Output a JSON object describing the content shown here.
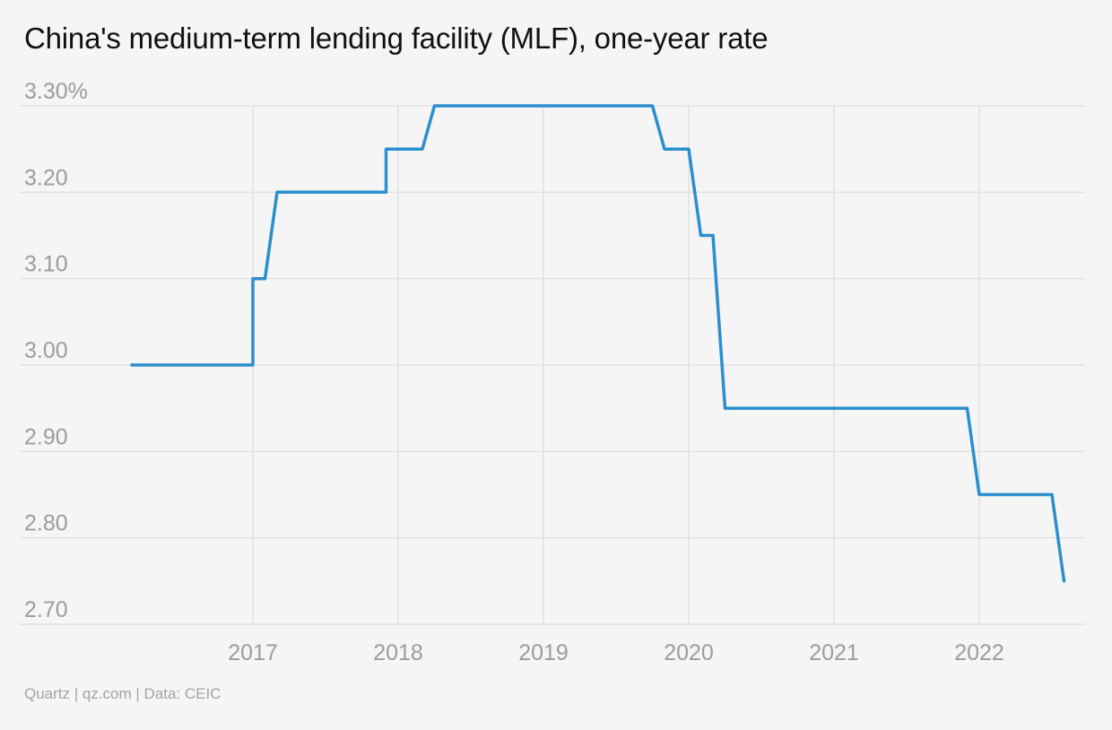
{
  "title": "China's medium-term lending facility (MLF), one-year rate",
  "footer": "Quartz | qz.com | Data: CEIC",
  "colors": {
    "line": "#2b8fcf",
    "grid": "#e2e2e2",
    "tick": "#9c9c9c",
    "background": "#f5f5f5"
  },
  "chart_data": {
    "type": "line",
    "title": "China's medium-term lending facility (MLF), one-year rate",
    "xlabel": "",
    "ylabel": "",
    "x_ticks": [
      "2017",
      "2018",
      "2019",
      "2020",
      "2021",
      "2022"
    ],
    "y_ticks": [
      "3.30%",
      "3.20",
      "3.10",
      "3.00",
      "2.90",
      "2.80",
      "2.70"
    ],
    "y_tick_values": [
      3.3,
      3.2,
      3.1,
      3.0,
      2.9,
      2.8,
      2.7
    ],
    "ylim": [
      2.7,
      3.3
    ],
    "grid": true,
    "series": [
      {
        "points": [
          [
            "2016-03",
            3.0
          ],
          [
            "2017-01",
            3.0
          ],
          [
            "2017-01",
            3.1
          ],
          [
            "2017-02",
            3.1
          ],
          [
            "2017-03",
            3.2
          ],
          [
            "2017-12",
            3.2
          ],
          [
            "2017-12",
            3.25
          ],
          [
            "2018-03",
            3.25
          ],
          [
            "2018-04",
            3.3
          ],
          [
            "2019-10",
            3.3
          ],
          [
            "2019-11",
            3.25
          ],
          [
            "2020-01",
            3.25
          ],
          [
            "2020-02",
            3.15
          ],
          [
            "2020-03",
            3.15
          ],
          [
            "2020-04",
            2.95
          ],
          [
            "2021-12",
            2.95
          ],
          [
            "2022-01",
            2.85
          ],
          [
            "2022-07",
            2.85
          ],
          [
            "2022-08",
            2.75
          ]
        ]
      }
    ]
  }
}
